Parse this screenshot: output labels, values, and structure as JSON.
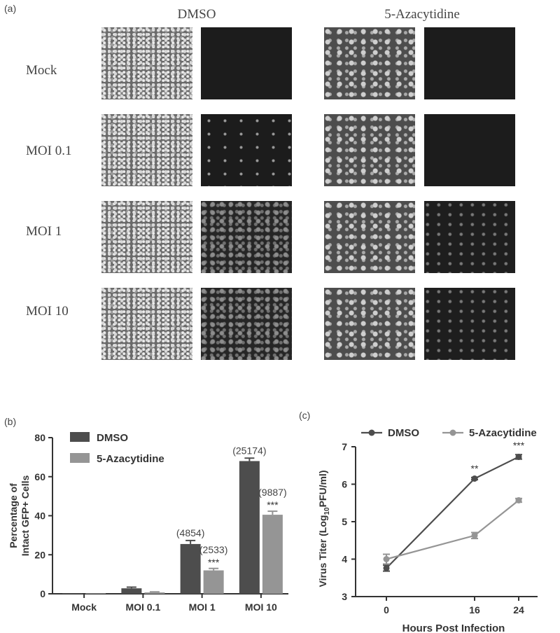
{
  "panel_a": {
    "letter": "(a)",
    "columns": [
      "DMSO",
      "5-Azacytidine"
    ],
    "rows": [
      "Mock",
      "MOI 0.1",
      "MOI 1",
      "MOI 10"
    ]
  },
  "panel_b": {
    "letter": "(b)"
  },
  "panel_c": {
    "letter": "(c)"
  },
  "chart_data": [
    {
      "type": "bar",
      "ylabel": "Percentage of Intact GFP+ Cells",
      "xlabel": "",
      "ylim": [
        0,
        80
      ],
      "yticks": [
        0,
        20,
        40,
        60,
        80
      ],
      "categories": [
        "Mock",
        "MOI 0.1",
        "MOI 1",
        "MOI 10"
      ],
      "legend_position": "top-left",
      "series": [
        {
          "name": "DMSO",
          "color": "#4d4d4d",
          "values": [
            0,
            2.8,
            25.5,
            68
          ],
          "errors": [
            0,
            0.6,
            1.8,
            1.5
          ],
          "annotations": [
            "",
            "",
            "(4854)",
            "(25174)"
          ],
          "significance": [
            "",
            "",
            "",
            ""
          ]
        },
        {
          "name": "5-Azacytidine",
          "color": "#959595",
          "values": [
            0,
            0.7,
            12,
            40.5
          ],
          "errors": [
            0,
            0.3,
            1.0,
            1.8
          ],
          "annotations": [
            "",
            "",
            "(2533)",
            "(9887)"
          ],
          "significance": [
            "",
            "",
            "***",
            "***"
          ]
        }
      ]
    },
    {
      "type": "line",
      "xlabel": "Hours Post Infection",
      "ylabel": "Virus Titer (Log10PFU/ml)",
      "ylabel_parts": [
        "Virus Titer (Log",
        "10",
        "PFU/ml)"
      ],
      "x": [
        0,
        16,
        24
      ],
      "xticks": [
        0,
        16,
        24
      ],
      "ylim": [
        3,
        7
      ],
      "yticks": [
        3,
        4,
        5,
        6,
        7
      ],
      "legend_position": "top",
      "series": [
        {
          "name": "DMSO",
          "color": "#4d4d4d",
          "values": [
            3.76,
            6.15,
            6.73
          ],
          "errors": [
            0.08,
            0.03,
            0.06
          ],
          "significance": [
            "",
            "**",
            "***"
          ]
        },
        {
          "name": "5-Azacytidine",
          "color": "#959595",
          "values": [
            4.0,
            4.63,
            5.57
          ],
          "errors": [
            0.13,
            0.08,
            0.05
          ],
          "significance": [
            "",
            "",
            ""
          ]
        }
      ]
    }
  ]
}
